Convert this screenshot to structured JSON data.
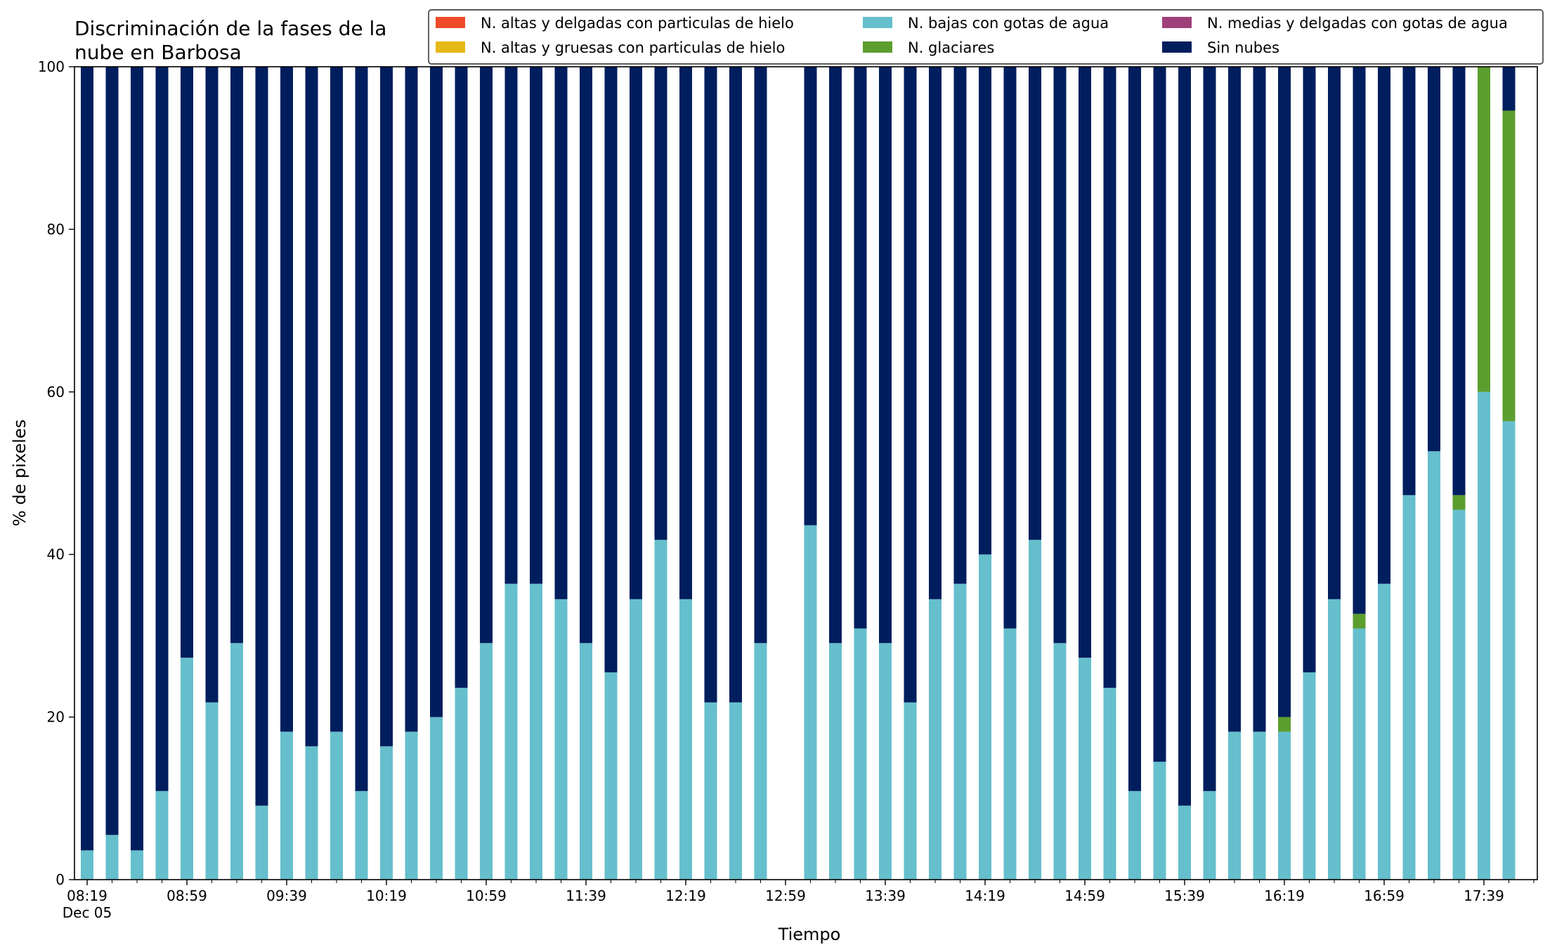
{
  "chart_data": {
    "type": "bar",
    "stacked": true,
    "title": "Discriminación de la fases de la nube en Barbosa",
    "title_lines": [
      "Discriminación de la fases de la",
      "nube en Barbosa"
    ],
    "xlabel": "Tiempo",
    "ylabel": "% de pixeles",
    "ylim": [
      0,
      100
    ],
    "yticks": [
      0,
      20,
      40,
      60,
      80,
      100
    ],
    "x_start": "08:19",
    "x_step_minutes": 10,
    "x_count": 58,
    "xtick_labels": [
      "08:19",
      "08:59",
      "09:39",
      "10:19",
      "10:59",
      "11:39",
      "12:19",
      "12:59",
      "13:39",
      "14:19",
      "14:59",
      "15:39",
      "16:19",
      "16:59",
      "17:39"
    ],
    "x_date_label": "Dec 05",
    "legend_position": "top-right",
    "series": [
      {
        "name": "N. altas y delgadas con particulas de hielo",
        "color": "#ef4a2a"
      },
      {
        "name": "N. altas y gruesas con particulas de hielo",
        "color": "#e5b817"
      },
      {
        "name": "N. bajas con gotas de agua",
        "color": "#66bfcc"
      },
      {
        "name": "N. glaciares",
        "color": "#5c9e2e"
      },
      {
        "name": "N. medias y delgadas con gotas de agua",
        "color": "#a0407a"
      },
      {
        "name": "Sin nubes",
        "color": "#001e5e"
      }
    ],
    "bajas": [
      3.6,
      5.5,
      3.6,
      10.9,
      27.3,
      21.8,
      29.1,
      9.1,
      18.2,
      16.4,
      18.2,
      10.9,
      16.4,
      18.2,
      20.0,
      23.6,
      29.1,
      36.4,
      36.4,
      34.5,
      29.1,
      25.5,
      34.5,
      41.8,
      34.5,
      21.8,
      21.8,
      29.1,
      null,
      43.6,
      29.1,
      30.9,
      29.1,
      21.8,
      34.5,
      36.4,
      40.0,
      30.9,
      41.8,
      29.1,
      27.3,
      23.6,
      10.9,
      14.5,
      9.1,
      10.9,
      18.2,
      18.2,
      18.2,
      25.5,
      34.5,
      30.9,
      36.4,
      47.3,
      52.7,
      45.5,
      60.0,
      56.4
    ],
    "glaciares": [
      0,
      0,
      0,
      0,
      0,
      0,
      0,
      0,
      0,
      0,
      0,
      0,
      0,
      0,
      0,
      0,
      0,
      0,
      0,
      0,
      0,
      0,
      0,
      0,
      0,
      0,
      0,
      0,
      null,
      0,
      0,
      0,
      0,
      0,
      0,
      0,
      0,
      0,
      0,
      0,
      0,
      0,
      0,
      0,
      0,
      0,
      0,
      0,
      1.8,
      0,
      0,
      1.8,
      0,
      0,
      0,
      1.8,
      40.0,
      38.2
    ],
    "sin_nubes": [
      96.4,
      94.5,
      96.4,
      89.1,
      72.7,
      78.2,
      70.9,
      90.9,
      81.8,
      83.6,
      81.8,
      89.1,
      83.6,
      81.8,
      80.0,
      76.4,
      70.9,
      63.6,
      63.6,
      65.5,
      70.9,
      74.5,
      65.5,
      58.2,
      65.5,
      78.2,
      78.2,
      70.9,
      null,
      56.4,
      70.9,
      69.1,
      70.9,
      78.2,
      65.5,
      63.6,
      60.0,
      69.1,
      58.2,
      70.9,
      72.7,
      76.4,
      89.1,
      85.5,
      90.9,
      89.1,
      81.8,
      81.8,
      80.0,
      74.5,
      65.5,
      67.3,
      63.6,
      52.7,
      47.3,
      52.7,
      0,
      5.4
    ]
  }
}
